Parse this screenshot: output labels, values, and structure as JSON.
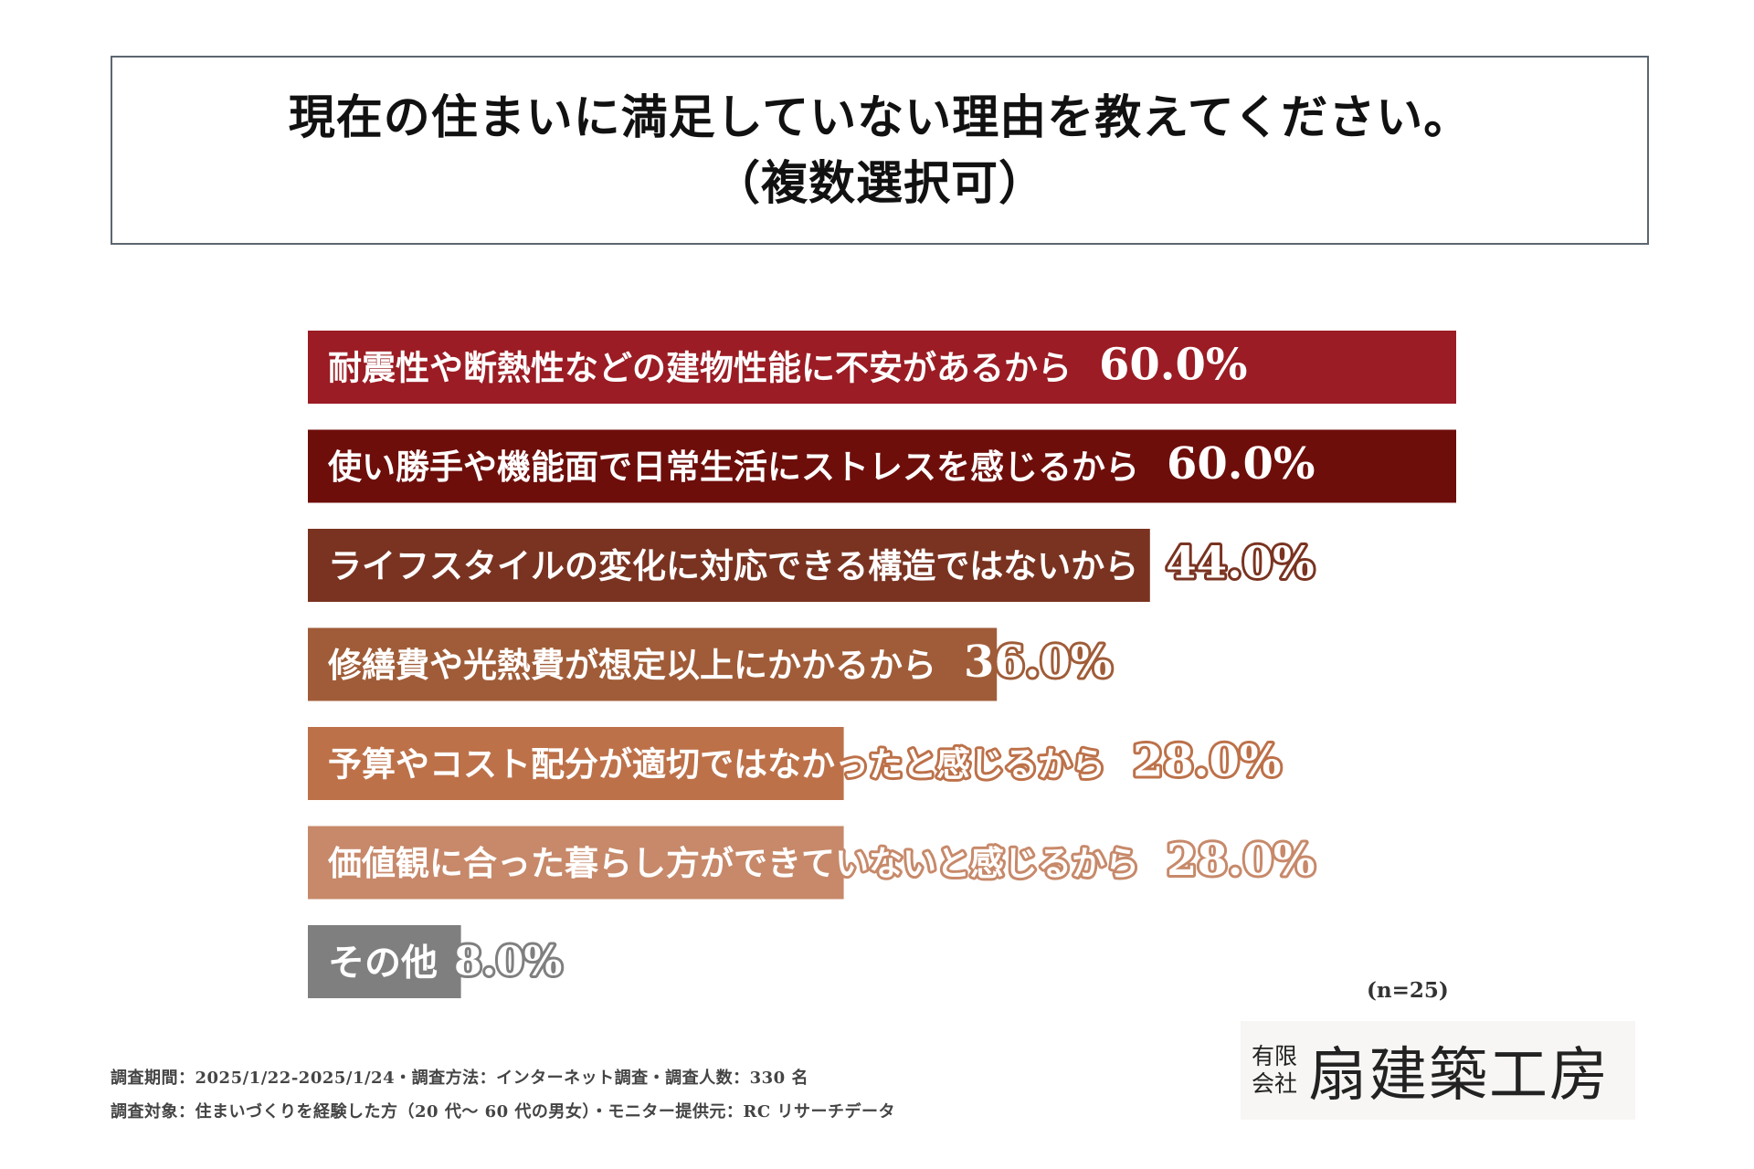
{
  "title": {
    "line1": "現在の住まいに満足していない理由を教えてください。",
    "line2": "（複数選択可）"
  },
  "chart_data": {
    "type": "bar",
    "orientation": "horizontal",
    "title": "現在の住まいに満足していない理由を教えてください。（複数選択可）",
    "categories": [
      "耐震性や断熱性などの建物性能に不安があるから",
      "使い勝手や機能面で日常生活にストレスを感じるから",
      "ライフスタイルの変化に対応できる構造ではないから",
      "修繕費や光熱費が想定以上にかかるから",
      "予算やコスト配分が適切ではなかったと感じるから",
      "価値観に合った暮らし方ができていないと感じるから",
      "その他"
    ],
    "values": [
      60.0,
      60.0,
      44.0,
      36.0,
      28.0,
      28.0,
      8.0
    ],
    "value_labels": [
      "60.0%",
      "60.0%",
      "44.0%",
      "36.0%",
      "28.0%",
      "28.0%",
      "8.0%"
    ],
    "colors": [
      "#9b1c24",
      "#6e0e0b",
      "#7a3321",
      "#a05c38",
      "#bd7149",
      "#c7896a",
      "#7f7f7f"
    ],
    "xlim": [
      0,
      60
    ],
    "grid": false,
    "legend": "none"
  },
  "sample_size": "(n=25)",
  "footnotes": {
    "line1": "調査期間：2025/1/22-2025/1/24・調査方法：インターネット調査・調査人数：330 名",
    "line2": "調査対象：住まいづくりを経験した方（20 代～ 60 代の男女）・モニター提供元：RC リサーチデータ"
  },
  "logo": {
    "small_line1": "有限",
    "small_line2": "会社",
    "name": "扇建築工房"
  }
}
